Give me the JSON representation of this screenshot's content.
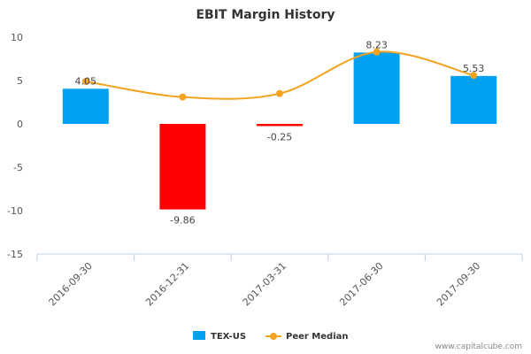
{
  "chart_data": {
    "type": "bar",
    "title": "EBIT Margin History",
    "categories": [
      "2016-09-30",
      "2016-12-31",
      "2017-03-31",
      "2017-06-30",
      "2017-09-30"
    ],
    "series": [
      {
        "name": "TEX-US",
        "type": "bar",
        "values": [
          4.05,
          -9.86,
          -0.25,
          8.23,
          5.53
        ],
        "data_labels": [
          "4.05",
          "-9.86",
          "-0.25",
          "8.23",
          "5.53"
        ],
        "color": "#00a1f1",
        "negative_color": "#ff0000"
      },
      {
        "name": "Peer Median",
        "type": "line",
        "values": [
          4.9,
          3.1,
          3.5,
          8.3,
          5.6
        ],
        "color": "#f4a320"
      }
    ],
    "ylim": [
      -15,
      10
    ],
    "yticks": [
      10,
      5,
      0,
      -5,
      -10,
      -15
    ],
    "grid": false,
    "legend_position": "bottom"
  },
  "credit": "www.capitalcube.com"
}
